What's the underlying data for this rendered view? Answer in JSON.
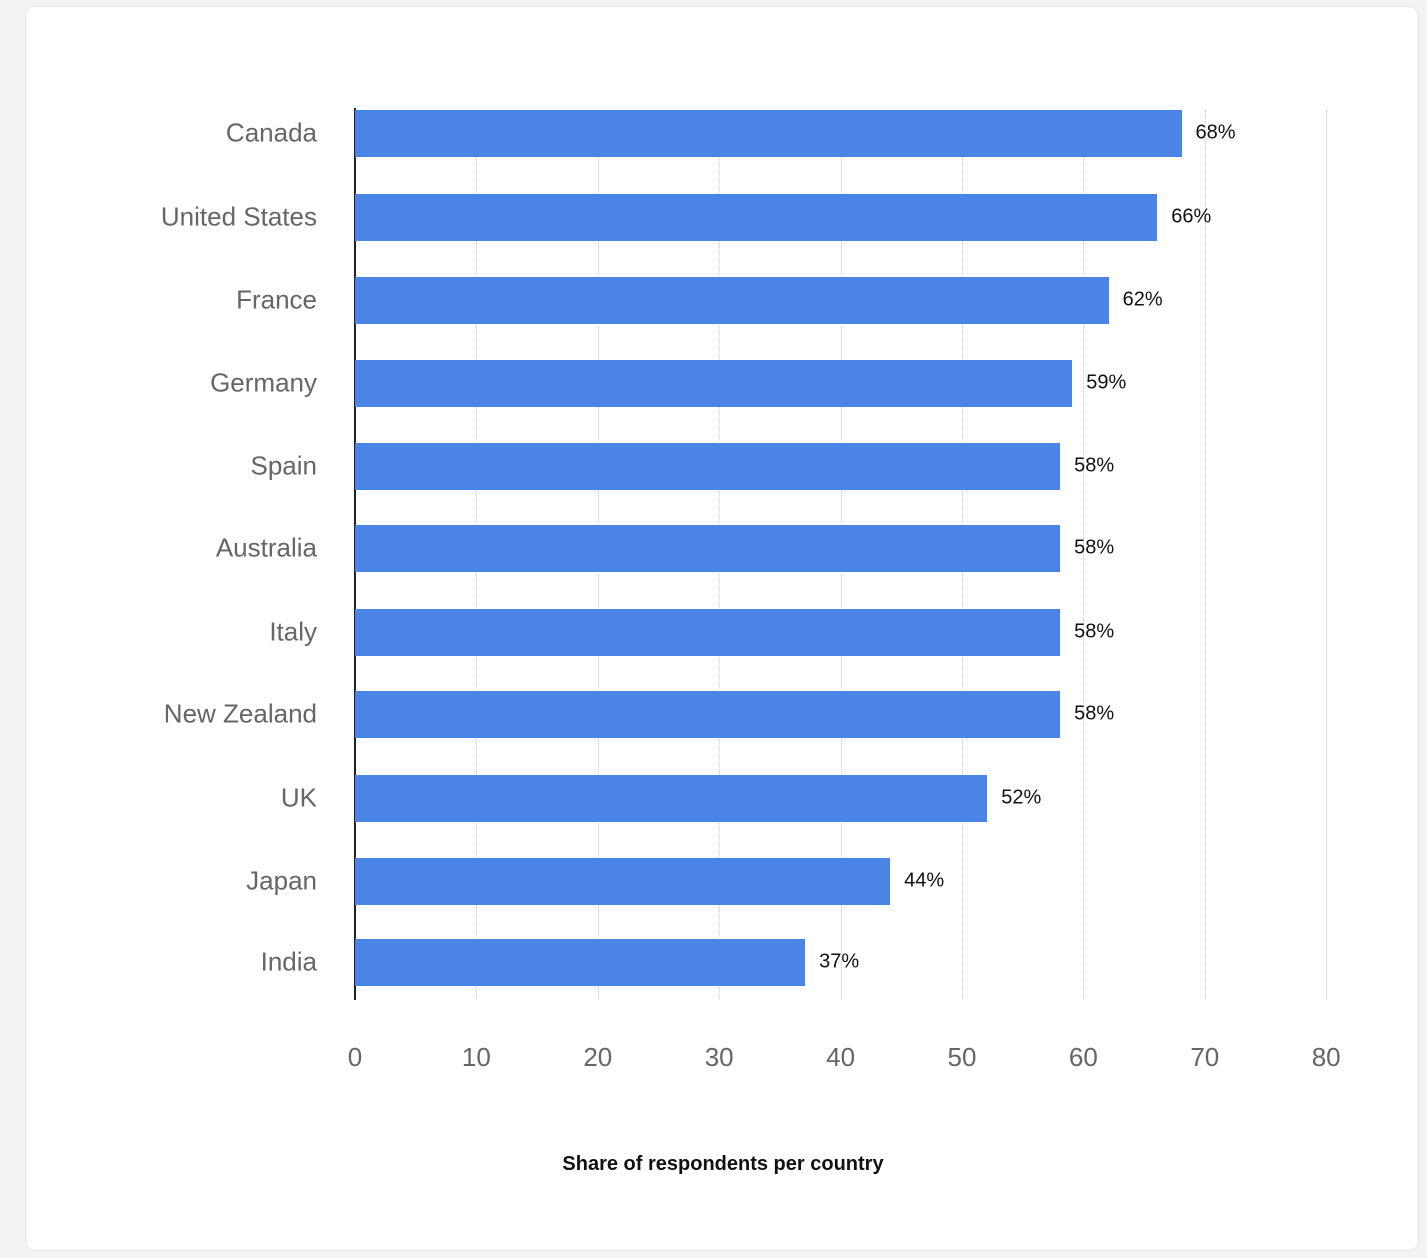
{
  "chart_data": {
    "type": "bar",
    "orientation": "horizontal",
    "title": "",
    "xlabel": "Share of respondents per country",
    "ylabel": "",
    "xlim": [
      0,
      80
    ],
    "grid": true,
    "legend": null,
    "categories": [
      "Canada",
      "United States",
      "France",
      "Germany",
      "Spain",
      "Australia",
      "Italy",
      "New Zealand",
      "UK",
      "Japan",
      "India"
    ],
    "values": [
      68,
      66,
      62,
      59,
      58,
      58,
      58,
      58,
      52,
      44,
      37
    ],
    "value_labels": [
      "68%",
      "66%",
      "62%",
      "59%",
      "58%",
      "58%",
      "58%",
      "58%",
      "52%",
      "44%",
      "37%"
    ],
    "x_ticks": [
      "0",
      "10",
      "20",
      "30",
      "40",
      "50",
      "60",
      "70",
      "80"
    ],
    "bar_color": "#4a85e6"
  }
}
